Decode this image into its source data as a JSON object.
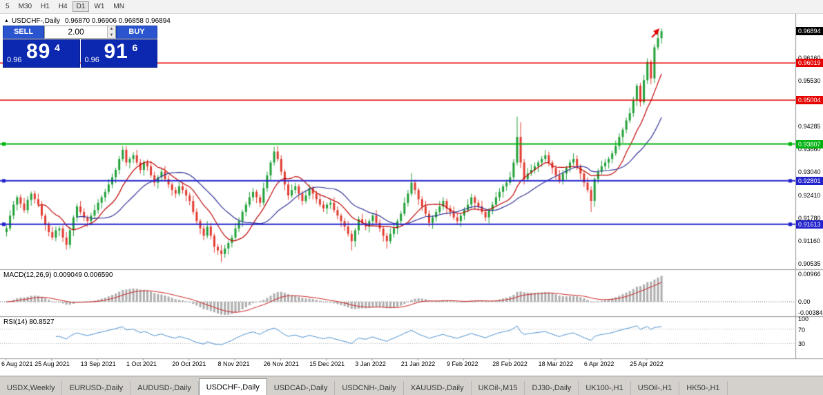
{
  "toolbar": {
    "timeframes": [
      "5",
      "M30",
      "H1",
      "H4",
      "D1",
      "W1",
      "MN"
    ],
    "active": "D1"
  },
  "header": {
    "symbol": "USDCHF-,Daily",
    "ohlc": "0.96870 0.96906 0.96858 0.96894"
  },
  "trade_widget": {
    "sell_label": "SELL",
    "buy_label": "BUY",
    "volume": "2.00",
    "sell_price": {
      "prefix": "0.96",
      "big": "89",
      "pip": "4"
    },
    "buy_price": {
      "prefix": "0.96",
      "big": "91",
      "pip": "6"
    }
  },
  "chart_data": {
    "type": "candlestick",
    "symbol": "USDCHF",
    "timeframe": "Daily",
    "bull_color": "#21a038",
    "bear_color": "#e13b30",
    "x_labels": [
      "6 Aug 2021",
      "25 Aug 2021",
      "13 Sep 2021",
      "1 Oct 2021",
      "20 Oct 2021",
      "8 Nov 2021",
      "26 Nov 2021",
      "15 Dec 2021",
      "3 Jan 2022",
      "21 Jan 2022",
      "9 Feb 2022",
      "28 Feb 2022",
      "18 Mar 2022",
      "6 Apr 2022",
      "25 Apr 2022"
    ],
    "bars_per_label": 13,
    "price_axis": {
      "min": 0.9042,
      "max": 0.9729,
      "ticks": [
        0.90535,
        0.9116,
        0.9178,
        0.9241,
        0.9304,
        0.9366,
        0.94285,
        0.9491,
        0.9553,
        0.9616,
        0.96775
      ]
    },
    "overlays": [
      {
        "name": "ma-fast",
        "period": 10,
        "color": "#c00000"
      },
      {
        "name": "ma-slow",
        "period": 21,
        "color": "#333399"
      }
    ],
    "levels": [
      {
        "price": 0.96894,
        "color": "#000000",
        "line": false,
        "selected": false
      },
      {
        "price": 0.96019,
        "color": "#e60000",
        "line": true,
        "width": 1.5,
        "selected": false
      },
      {
        "price": 0.95004,
        "color": "#e60000",
        "line": true,
        "width": 1.5,
        "selected": false
      },
      {
        "price": 0.93807,
        "color": "#00b30f",
        "line": true,
        "width": 2,
        "selected": true
      },
      {
        "price": 0.92801,
        "color": "#2222cc",
        "line": true,
        "width": 2,
        "selected": true
      },
      {
        "price": 0.91613,
        "color": "#2222cc",
        "line": true,
        "width": 2,
        "selected": true
      }
    ],
    "macd": {
      "label": "MACD(12,26,9) 0.009049 0.006590",
      "fast": 12,
      "slow": 26,
      "signal": 9,
      "hist_color": "#adadad",
      "signal_color": "#cc2222",
      "axis_labels": [
        {
          "label": "0.00966",
          "value": 0.00966
        },
        {
          "label": "0.00",
          "value": 0
        },
        {
          "label": "-0.00384",
          "value": -0.00384
        }
      ]
    },
    "rsi": {
      "label": "RSI(14) 80.8527",
      "period": 14,
      "color": "#4a90d2",
      "levels": [
        70,
        30
      ],
      "axis_labels": [
        {
          "label": "100",
          "value": 100
        },
        {
          "label": "70",
          "value": 70
        },
        {
          "label": "30",
          "value": 30
        }
      ]
    },
    "candles": [
      [
        0.914,
        0.9158,
        0.9128,
        0.915
      ],
      [
        0.915,
        0.92,
        0.9143,
        0.9185
      ],
      [
        0.9185,
        0.9225,
        0.9175,
        0.9215
      ],
      [
        0.9215,
        0.9241,
        0.9199,
        0.9235
      ],
      [
        0.9235,
        0.9243,
        0.9206,
        0.9218
      ],
      [
        0.9218,
        0.9233,
        0.9193,
        0.92
      ],
      [
        0.92,
        0.9238,
        0.919,
        0.9228
      ],
      [
        0.9228,
        0.9251,
        0.9212,
        0.9245
      ],
      [
        0.9245,
        0.9253,
        0.9218,
        0.923
      ],
      [
        0.923,
        0.9245,
        0.9208,
        0.9215
      ],
      [
        0.9215,
        0.9225,
        0.9175,
        0.9185
      ],
      [
        0.9185,
        0.9191,
        0.9144,
        0.916
      ],
      [
        0.916,
        0.9168,
        0.9128,
        0.914
      ],
      [
        0.914,
        0.9155,
        0.9118,
        0.9125
      ],
      [
        0.9125,
        0.9155,
        0.9115,
        0.9145
      ],
      [
        0.9145,
        0.9156,
        0.9129,
        0.915
      ],
      [
        0.915,
        0.9158,
        0.9113,
        0.9125
      ],
      [
        0.9125,
        0.914,
        0.9092,
        0.9105
      ],
      [
        0.9105,
        0.9155,
        0.9095,
        0.9145
      ],
      [
        0.9145,
        0.9186,
        0.9129,
        0.918
      ],
      [
        0.918,
        0.9218,
        0.9168,
        0.921
      ],
      [
        0.921,
        0.9225,
        0.9188,
        0.9195
      ],
      [
        0.9195,
        0.9205,
        0.917,
        0.918
      ],
      [
        0.918,
        0.9186,
        0.9154,
        0.917
      ],
      [
        0.917,
        0.9193,
        0.9158,
        0.9185
      ],
      [
        0.9185,
        0.9215,
        0.9178,
        0.92
      ],
      [
        0.92,
        0.923,
        0.919,
        0.922
      ],
      [
        0.922,
        0.9241,
        0.9204,
        0.9235
      ],
      [
        0.9235,
        0.9258,
        0.9223,
        0.925
      ],
      [
        0.925,
        0.9285,
        0.9243,
        0.927
      ],
      [
        0.927,
        0.93,
        0.926,
        0.929
      ],
      [
        0.929,
        0.9316,
        0.9274,
        0.931
      ],
      [
        0.931,
        0.9348,
        0.9298,
        0.934
      ],
      [
        0.934,
        0.9375,
        0.9333,
        0.9365
      ],
      [
        0.9365,
        0.9375,
        0.932,
        0.933
      ],
      [
        0.933,
        0.9346,
        0.9314,
        0.934
      ],
      [
        0.934,
        0.9358,
        0.9328,
        0.935
      ],
      [
        0.935,
        0.9365,
        0.9323,
        0.933
      ],
      [
        0.933,
        0.934,
        0.93,
        0.931
      ],
      [
        0.931,
        0.9336,
        0.9294,
        0.933
      ],
      [
        0.933,
        0.9338,
        0.9308,
        0.932
      ],
      [
        0.932,
        0.9335,
        0.9288,
        0.9295
      ],
      [
        0.9295,
        0.9305,
        0.9265,
        0.9275
      ],
      [
        0.9275,
        0.9296,
        0.9259,
        0.929
      ],
      [
        0.929,
        0.9313,
        0.9278,
        0.9305
      ],
      [
        0.9305,
        0.932,
        0.9278,
        0.9285
      ],
      [
        0.9285,
        0.9295,
        0.926,
        0.927
      ],
      [
        0.927,
        0.9276,
        0.9239,
        0.9255
      ],
      [
        0.9255,
        0.9263,
        0.9233,
        0.9245
      ],
      [
        0.9245,
        0.928,
        0.9238,
        0.9265
      ],
      [
        0.9265,
        0.9275,
        0.9245,
        0.9255
      ],
      [
        0.9255,
        0.9261,
        0.9224,
        0.924
      ],
      [
        0.924,
        0.9248,
        0.9213,
        0.9225
      ],
      [
        0.9225,
        0.924,
        0.9188,
        0.9195
      ],
      [
        0.9195,
        0.9205,
        0.916,
        0.917
      ],
      [
        0.917,
        0.9176,
        0.9134,
        0.915
      ],
      [
        0.915,
        0.9158,
        0.9118,
        0.913
      ],
      [
        0.913,
        0.917,
        0.9123,
        0.9155
      ],
      [
        0.9155,
        0.9165,
        0.912,
        0.913
      ],
      [
        0.913,
        0.9136,
        0.9084,
        0.91
      ],
      [
        0.91,
        0.9108,
        0.9078,
        0.909
      ],
      [
        0.909,
        0.9105,
        0.9058,
        0.908
      ],
      [
        0.908,
        0.9105,
        0.907,
        0.9095
      ],
      [
        0.9095,
        0.9116,
        0.9079,
        0.911
      ],
      [
        0.911,
        0.9133,
        0.9098,
        0.9125
      ],
      [
        0.9125,
        0.9165,
        0.9118,
        0.915
      ],
      [
        0.915,
        0.918,
        0.914,
        0.917
      ],
      [
        0.917,
        0.9201,
        0.9154,
        0.9195
      ],
      [
        0.9195,
        0.9223,
        0.9183,
        0.9215
      ],
      [
        0.9215,
        0.925,
        0.9208,
        0.9235
      ],
      [
        0.9235,
        0.926,
        0.9225,
        0.925
      ],
      [
        0.925,
        0.9256,
        0.9219,
        0.9235
      ],
      [
        0.9235,
        0.9243,
        0.9208,
        0.922
      ],
      [
        0.922,
        0.9275,
        0.9213,
        0.926
      ],
      [
        0.926,
        0.9305,
        0.925,
        0.9295
      ],
      [
        0.9295,
        0.9336,
        0.9279,
        0.933
      ],
      [
        0.933,
        0.9373,
        0.9322,
        0.936
      ],
      [
        0.936,
        0.9375,
        0.9333,
        0.934
      ],
      [
        0.934,
        0.935,
        0.9295,
        0.9305
      ],
      [
        0.9305,
        0.9311,
        0.9254,
        0.927
      ],
      [
        0.927,
        0.9278,
        0.9228,
        0.924
      ],
      [
        0.924,
        0.927,
        0.9233,
        0.9255
      ],
      [
        0.9255,
        0.9275,
        0.9245,
        0.9265
      ],
      [
        0.9265,
        0.9271,
        0.9229,
        0.9245
      ],
      [
        0.9245,
        0.9253,
        0.9213,
        0.9225
      ],
      [
        0.9225,
        0.9255,
        0.9218,
        0.924
      ],
      [
        0.924,
        0.927,
        0.923,
        0.926
      ],
      [
        0.926,
        0.9266,
        0.9229,
        0.9245
      ],
      [
        0.9245,
        0.9253,
        0.9218,
        0.923
      ],
      [
        0.923,
        0.9245,
        0.9208,
        0.9215
      ],
      [
        0.9215,
        0.9225,
        0.9195,
        0.9205
      ],
      [
        0.9205,
        0.9221,
        0.9189,
        0.9215
      ],
      [
        0.9215,
        0.9228,
        0.9203,
        0.922
      ],
      [
        0.922,
        0.9235,
        0.9193,
        0.92
      ],
      [
        0.92,
        0.921,
        0.9175,
        0.9185
      ],
      [
        0.9185,
        0.9191,
        0.9154,
        0.917
      ],
      [
        0.917,
        0.9178,
        0.9143,
        0.9155
      ],
      [
        0.9155,
        0.917,
        0.9128,
        0.9135
      ],
      [
        0.9135,
        0.9145,
        0.909,
        0.9115
      ],
      [
        0.9115,
        0.9151,
        0.9099,
        0.9145
      ],
      [
        0.9145,
        0.9183,
        0.9133,
        0.9175
      ],
      [
        0.9175,
        0.919,
        0.9158,
        0.9165
      ],
      [
        0.9165,
        0.9175,
        0.9145,
        0.9155
      ],
      [
        0.9155,
        0.9176,
        0.9139,
        0.917
      ],
      [
        0.917,
        0.9193,
        0.9158,
        0.9185
      ],
      [
        0.9185,
        0.92,
        0.9158,
        0.9165
      ],
      [
        0.9165,
        0.9175,
        0.914,
        0.915
      ],
      [
        0.915,
        0.9156,
        0.9114,
        0.913
      ],
      [
        0.913,
        0.9138,
        0.9095,
        0.9115
      ],
      [
        0.9115,
        0.915,
        0.9108,
        0.9135
      ],
      [
        0.9135,
        0.916,
        0.9125,
        0.915
      ],
      [
        0.915,
        0.9176,
        0.9134,
        0.917
      ],
      [
        0.917,
        0.9198,
        0.9158,
        0.919
      ],
      [
        0.919,
        0.9235,
        0.9183,
        0.922
      ],
      [
        0.922,
        0.9255,
        0.921,
        0.9245
      ],
      [
        0.9245,
        0.9301,
        0.9238,
        0.9275
      ],
      [
        0.9275,
        0.9283,
        0.9243,
        0.9255
      ],
      [
        0.9255,
        0.9261,
        0.9214,
        0.923
      ],
      [
        0.923,
        0.9238,
        0.9198,
        0.921
      ],
      [
        0.921,
        0.9225,
        0.9183,
        0.919
      ],
      [
        0.919,
        0.92,
        0.9155,
        0.9165
      ],
      [
        0.9165,
        0.9186,
        0.9149,
        0.918
      ],
      [
        0.918,
        0.9203,
        0.9168,
        0.9195
      ],
      [
        0.9195,
        0.9225,
        0.9188,
        0.921
      ],
      [
        0.921,
        0.9235,
        0.92,
        0.9225
      ],
      [
        0.9225,
        0.9231,
        0.9189,
        0.9205
      ],
      [
        0.9205,
        0.9213,
        0.9183,
        0.9195
      ],
      [
        0.9195,
        0.921,
        0.9173,
        0.918
      ],
      [
        0.918,
        0.919,
        0.916,
        0.917
      ],
      [
        0.917,
        0.9191,
        0.9154,
        0.9185
      ],
      [
        0.9185,
        0.9208,
        0.9173,
        0.92
      ],
      [
        0.92,
        0.923,
        0.9193,
        0.9215
      ],
      [
        0.9215,
        0.9245,
        0.9205,
        0.9235
      ],
      [
        0.9235,
        0.9241,
        0.9204,
        0.922
      ],
      [
        0.922,
        0.9228,
        0.9198,
        0.921
      ],
      [
        0.921,
        0.9225,
        0.9188,
        0.9195
      ],
      [
        0.9195,
        0.9205,
        0.917,
        0.918
      ],
      [
        0.918,
        0.9206,
        0.9164,
        0.92
      ],
      [
        0.92,
        0.9223,
        0.9188,
        0.9215
      ],
      [
        0.9215,
        0.925,
        0.9208,
        0.9235
      ],
      [
        0.9235,
        0.926,
        0.9225,
        0.925
      ],
      [
        0.925,
        0.9271,
        0.9234,
        0.9265
      ],
      [
        0.9265,
        0.9283,
        0.9253,
        0.9275
      ],
      [
        0.9275,
        0.9305,
        0.9268,
        0.929
      ],
      [
        0.929,
        0.934,
        0.928,
        0.933
      ],
      [
        0.933,
        0.9455,
        0.9322,
        0.94
      ],
      [
        0.94,
        0.944,
        0.9315,
        0.933
      ],
      [
        0.933,
        0.934,
        0.927,
        0.9285
      ],
      [
        0.9285,
        0.9315,
        0.9278,
        0.93
      ],
      [
        0.93,
        0.9325,
        0.9293,
        0.931
      ],
      [
        0.931,
        0.933,
        0.93,
        0.932
      ],
      [
        0.932,
        0.9336,
        0.9304,
        0.933
      ],
      [
        0.933,
        0.9348,
        0.9318,
        0.934
      ],
      [
        0.934,
        0.9365,
        0.9333,
        0.935
      ],
      [
        0.935,
        0.936,
        0.932,
        0.933
      ],
      [
        0.933,
        0.9336,
        0.9299,
        0.9315
      ],
      [
        0.9315,
        0.9323,
        0.9283,
        0.9295
      ],
      [
        0.9295,
        0.931,
        0.9273,
        0.928
      ],
      [
        0.928,
        0.931,
        0.927,
        0.93
      ],
      [
        0.93,
        0.9321,
        0.9284,
        0.9315
      ],
      [
        0.9315,
        0.9338,
        0.9303,
        0.933
      ],
      [
        0.933,
        0.9355,
        0.9323,
        0.934
      ],
      [
        0.934,
        0.935,
        0.931,
        0.932
      ],
      [
        0.932,
        0.9326,
        0.9284,
        0.93
      ],
      [
        0.93,
        0.9308,
        0.9263,
        0.9275
      ],
      [
        0.9275,
        0.929,
        0.9248,
        0.9255
      ],
      [
        0.9255,
        0.9265,
        0.9195,
        0.9225
      ],
      [
        0.9225,
        0.9291,
        0.9209,
        0.9285
      ],
      [
        0.9285,
        0.9313,
        0.9273,
        0.9305
      ],
      [
        0.9305,
        0.9335,
        0.9298,
        0.932
      ],
      [
        0.932,
        0.934,
        0.931,
        0.933
      ],
      [
        0.933,
        0.9346,
        0.9314,
        0.934
      ],
      [
        0.934,
        0.9363,
        0.9328,
        0.9355
      ],
      [
        0.9355,
        0.939,
        0.9348,
        0.9375
      ],
      [
        0.9375,
        0.941,
        0.9365,
        0.94
      ],
      [
        0.94,
        0.9426,
        0.9384,
        0.942
      ],
      [
        0.942,
        0.9453,
        0.941,
        0.9445
      ],
      [
        0.9445,
        0.948,
        0.9438,
        0.9465
      ],
      [
        0.9465,
        0.951,
        0.9455,
        0.95
      ],
      [
        0.95,
        0.9546,
        0.9484,
        0.954
      ],
      [
        0.954,
        0.9548,
        0.9483,
        0.9495
      ],
      [
        0.9495,
        0.957,
        0.9488,
        0.9555
      ],
      [
        0.9555,
        0.9615,
        0.9545,
        0.9605
      ],
      [
        0.9605,
        0.9611,
        0.9544,
        0.956
      ],
      [
        0.956,
        0.9653,
        0.9548,
        0.9645
      ],
      [
        0.9645,
        0.9685,
        0.9638,
        0.967
      ],
      [
        0.967,
        0.9697,
        0.9655,
        0.9689
      ]
    ]
  },
  "tabs": {
    "items": [
      "USDX,Weekly",
      "EURUSD-,Daily",
      "AUDUSD-,Daily",
      "USDCHF-,Daily",
      "USDCAD-,Daily",
      "USDCNH-,Daily",
      "XAUUSD-,Daily",
      "UKOil-,M15",
      "DJ30-,Daily",
      "UK100-,H1",
      "USOil-,H1",
      "HK50-,H1"
    ],
    "active": "USDCHF-,Daily"
  }
}
